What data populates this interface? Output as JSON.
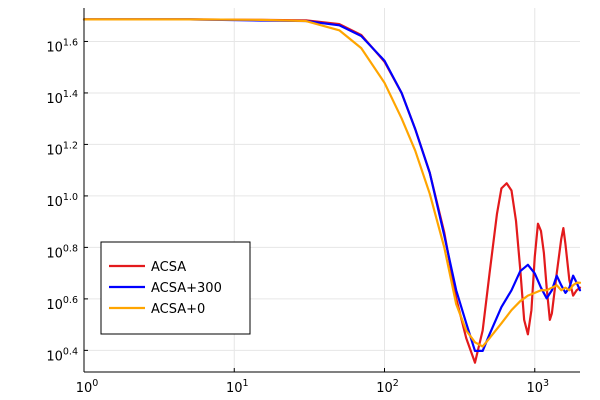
{
  "chart_data": {
    "type": "line",
    "title": "",
    "xlabel": "",
    "ylabel": "",
    "x_scale": "log10",
    "y_scale": "log10",
    "xlim": [
      1,
      2000
    ],
    "ylim": [
      2.07,
      53.7
    ],
    "grid": true,
    "legend_position": "bottom-left",
    "x_ticks": [
      {
        "value": 1,
        "base": "10",
        "exp": "0"
      },
      {
        "value": 10,
        "base": "10",
        "exp": "1"
      },
      {
        "value": 100,
        "base": "10",
        "exp": "2"
      },
      {
        "value": 1000,
        "base": "10",
        "exp": "3"
      }
    ],
    "y_ticks": [
      {
        "value": 2.512,
        "base": "10",
        "exp": "0.4"
      },
      {
        "value": 3.981,
        "base": "10",
        "exp": "0.6"
      },
      {
        "value": 6.31,
        "base": "10",
        "exp": "0.8"
      },
      {
        "value": 10.0,
        "base": "10",
        "exp": "1.0"
      },
      {
        "value": 15.849,
        "base": "10",
        "exp": "1.2"
      },
      {
        "value": 25.119,
        "base": "10",
        "exp": "1.4"
      },
      {
        "value": 39.811,
        "base": "10",
        "exp": "1.6"
      }
    ],
    "series": [
      {
        "name": "ACSA",
        "color": "#e31a1c",
        "points": [
          [
            1,
            48.5
          ],
          [
            5,
            48.5
          ],
          [
            15,
            48.3
          ],
          [
            30,
            48.1
          ],
          [
            50,
            46.5
          ],
          [
            70,
            42.2
          ],
          [
            100,
            33.2
          ],
          [
            130,
            25.1
          ],
          [
            160,
            18.2
          ],
          [
            200,
            12.3
          ],
          [
            250,
            7.2
          ],
          [
            300,
            4.0
          ],
          [
            350,
            2.8
          ],
          [
            400,
            2.25
          ],
          [
            450,
            3.0
          ],
          [
            500,
            5.0
          ],
          [
            560,
            8.5
          ],
          [
            600,
            10.7
          ],
          [
            650,
            11.2
          ],
          [
            700,
            10.5
          ],
          [
            750,
            8.0
          ],
          [
            800,
            5.2
          ],
          [
            850,
            3.3
          ],
          [
            900,
            2.9
          ],
          [
            950,
            3.6
          ],
          [
            1000,
            5.8
          ],
          [
            1050,
            7.8
          ],
          [
            1100,
            7.3
          ],
          [
            1150,
            6.0
          ],
          [
            1200,
            4.4
          ],
          [
            1260,
            3.3
          ],
          [
            1300,
            3.5
          ],
          [
            1400,
            5.0
          ],
          [
            1500,
            6.8
          ],
          [
            1550,
            7.5
          ],
          [
            1600,
            6.5
          ],
          [
            1700,
            4.7
          ],
          [
            1800,
            4.1
          ],
          [
            1900,
            4.3
          ],
          [
            2000,
            4.4
          ]
        ]
      },
      {
        "name": "ACSA+300",
        "color": "#0000ff",
        "points": [
          [
            1,
            48.5
          ],
          [
            5,
            48.5
          ],
          [
            15,
            48.0
          ],
          [
            30,
            47.8
          ],
          [
            50,
            46.0
          ],
          [
            70,
            41.8
          ],
          [
            100,
            33.5
          ],
          [
            130,
            25.1
          ],
          [
            160,
            18.2
          ],
          [
            200,
            12.3
          ],
          [
            250,
            7.0
          ],
          [
            300,
            4.3
          ],
          [
            350,
            3.2
          ],
          [
            400,
            2.5
          ],
          [
            450,
            2.5
          ],
          [
            500,
            2.9
          ],
          [
            600,
            3.7
          ],
          [
            700,
            4.3
          ],
          [
            800,
            5.1
          ],
          [
            900,
            5.4
          ],
          [
            1000,
            5.0
          ],
          [
            1100,
            4.4
          ],
          [
            1200,
            4.0
          ],
          [
            1300,
            4.3
          ],
          [
            1400,
            4.9
          ],
          [
            1500,
            4.5
          ],
          [
            1600,
            4.2
          ],
          [
            1700,
            4.4
          ],
          [
            1800,
            4.9
          ],
          [
            1900,
            4.6
          ],
          [
            2000,
            4.3
          ]
        ]
      },
      {
        "name": "ACSA+0",
        "color": "#ffa500",
        "points": [
          [
            1,
            48.5
          ],
          [
            5,
            48.5
          ],
          [
            15,
            48.3
          ],
          [
            30,
            47.8
          ],
          [
            50,
            44.0
          ],
          [
            70,
            37.5
          ],
          [
            100,
            27.5
          ],
          [
            130,
            20.0
          ],
          [
            160,
            15.0
          ],
          [
            200,
            10.2
          ],
          [
            250,
            6.3
          ],
          [
            300,
            3.8
          ],
          [
            350,
            3.0
          ],
          [
            400,
            2.7
          ],
          [
            450,
            2.6
          ],
          [
            500,
            2.8
          ],
          [
            600,
            3.2
          ],
          [
            700,
            3.6
          ],
          [
            800,
            3.9
          ],
          [
            900,
            4.1
          ],
          [
            1000,
            4.2
          ],
          [
            1100,
            4.3
          ],
          [
            1200,
            4.3
          ],
          [
            1300,
            4.4
          ],
          [
            1400,
            4.5
          ],
          [
            1500,
            4.3
          ],
          [
            1600,
            4.4
          ],
          [
            1700,
            4.3
          ],
          [
            1800,
            4.5
          ],
          [
            1900,
            4.6
          ],
          [
            2000,
            4.6
          ]
        ]
      }
    ]
  }
}
